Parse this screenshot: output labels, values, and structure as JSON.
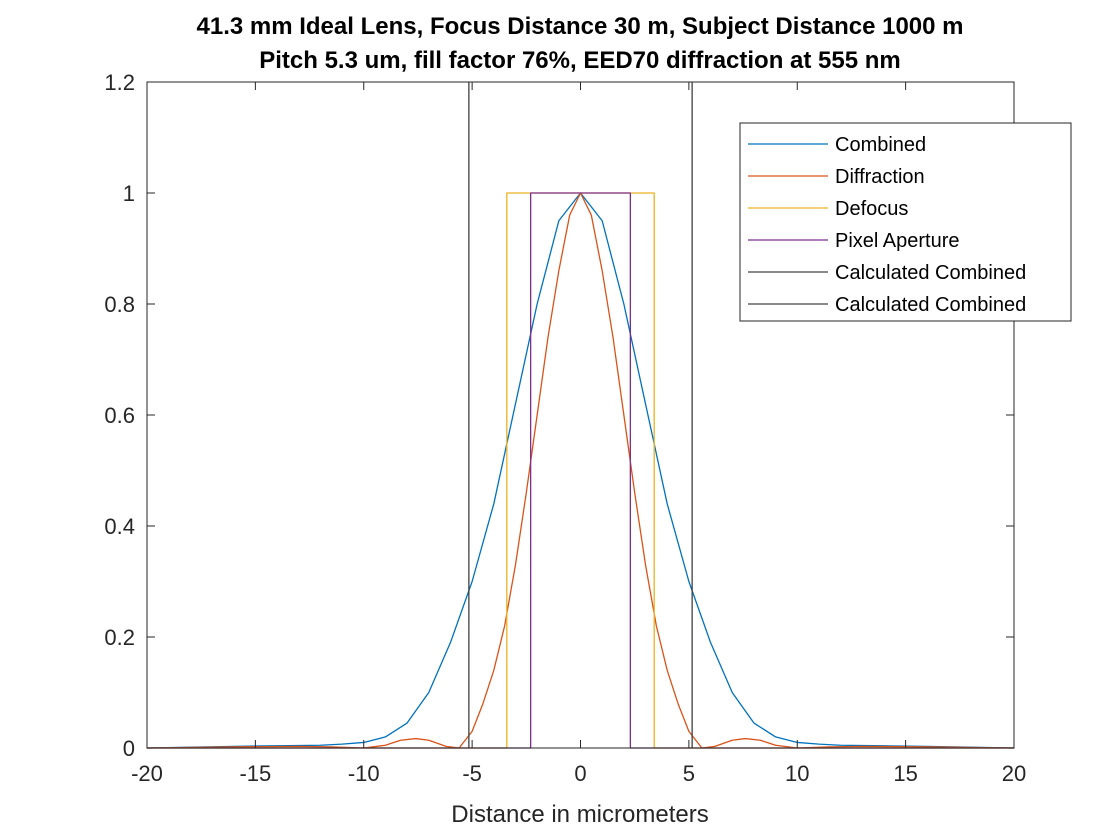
{
  "chart_data": {
    "type": "line",
    "title": [
      "41.3 mm Ideal Lens, Focus Distance 30 m, Subject Distance 1000 m",
      "Pitch 5.3 um, fill factor 76%, EED70 diffraction at 555 nm"
    ],
    "xlabel": "Distance in micrometers",
    "ylabel": "",
    "xlim": [
      -20,
      20
    ],
    "ylim": [
      0,
      1.2
    ],
    "xticks": [
      -20,
      -15,
      -10,
      -5,
      0,
      5,
      10,
      15,
      20
    ],
    "yticks": [
      0,
      0.2,
      0.4,
      0.6,
      0.8,
      1,
      1.2
    ],
    "xtick_labels": [
      "-20",
      "-15",
      "-10",
      "-5",
      "0",
      "5",
      "10",
      "15",
      "20"
    ],
    "ytick_labels": [
      "0",
      "0.2",
      "0.4",
      "0.6",
      "0.8",
      "1",
      "1.2"
    ],
    "grid": false,
    "box": true,
    "legend_position": "top-right",
    "series": [
      {
        "name": "Combined",
        "color": "#0072BD",
        "x": [
          -20,
          -16,
          -14,
          -12,
          -11,
          -10,
          -9,
          -8,
          -7,
          -6,
          -5,
          -4,
          -3,
          -2,
          -1,
          0,
          1,
          2,
          3,
          4,
          5,
          6,
          7,
          8,
          9,
          10,
          11,
          12,
          14,
          16,
          20
        ],
        "y": [
          0,
          0.003,
          0.004,
          0.005,
          0.007,
          0.01,
          0.02,
          0.045,
          0.1,
          0.19,
          0.3,
          0.44,
          0.62,
          0.8,
          0.95,
          1.0,
          0.95,
          0.8,
          0.62,
          0.44,
          0.3,
          0.19,
          0.1,
          0.045,
          0.02,
          0.01,
          0.007,
          0.005,
          0.004,
          0.003,
          0
        ]
      },
      {
        "name": "Diffraction",
        "color": "#D95319",
        "x": [
          -20,
          -16,
          -13,
          -11.5,
          -10,
          -9,
          -8.3,
          -7.6,
          -7,
          -6.2,
          -5.6,
          -5.0,
          -4.5,
          -4.0,
          -3.5,
          -3.0,
          -2.5,
          -2.0,
          -1.5,
          -1.0,
          -0.5,
          0,
          0.5,
          1.0,
          1.5,
          2.0,
          2.5,
          3.0,
          3.5,
          4.0,
          4.5,
          5.0,
          5.6,
          6.2,
          7,
          7.6,
          8.3,
          9,
          10,
          11.5,
          13,
          16,
          20
        ],
        "y": [
          0,
          0.002,
          0.003,
          0.002,
          0.0,
          0.005,
          0.014,
          0.017,
          0.014,
          0.003,
          0.0,
          0.03,
          0.08,
          0.14,
          0.22,
          0.33,
          0.46,
          0.6,
          0.74,
          0.86,
          0.96,
          1.0,
          0.96,
          0.86,
          0.74,
          0.6,
          0.46,
          0.33,
          0.22,
          0.14,
          0.08,
          0.03,
          0.0,
          0.003,
          0.014,
          0.017,
          0.014,
          0.005,
          0.0,
          0.002,
          0.003,
          0.002,
          0
        ]
      },
      {
        "name": "Defocus",
        "color": "#EDB120",
        "x": [
          -20,
          -3.4,
          -3.4,
          3.4,
          3.4,
          20
        ],
        "y": [
          0,
          0,
          1,
          1,
          0,
          0
        ]
      },
      {
        "name": "Pixel Aperture",
        "color": "#7E2F8E",
        "x": [
          -20,
          -2.3,
          -2.3,
          2.3,
          2.3,
          20
        ],
        "y": [
          0,
          0,
          1,
          1,
          0,
          0
        ]
      },
      {
        "name": "Calculated Combined",
        "color": "#404040",
        "x": [
          -5.15,
          -5.15
        ],
        "y": [
          0,
          1.2
        ]
      },
      {
        "name": "Calculated Combined",
        "color": "#404040",
        "x": [
          5.15,
          5.15
        ],
        "y": [
          0,
          1.2
        ]
      }
    ]
  }
}
